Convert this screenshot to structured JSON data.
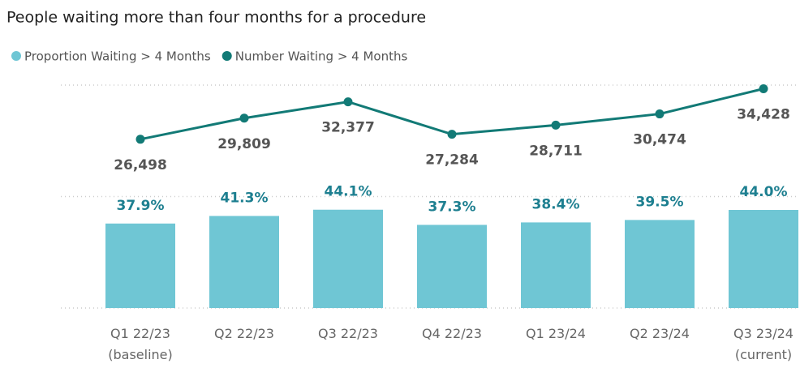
{
  "chart_data": {
    "type": "bar_line",
    "title": "People waiting more than four months for a procedure",
    "categories": [
      "Q1 22/23\n(baseline)",
      "Q2 22/23",
      "Q3 22/23",
      "Q4 22/23",
      "Q1 23/24",
      "Q2 23/24",
      "Q3 23/24\n(current)"
    ],
    "series": [
      {
        "name": "Proportion Waiting > 4 Months",
        "type": "bar",
        "color": "#6fc6d4",
        "values": [
          37.9,
          41.3,
          44.1,
          37.3,
          38.4,
          39.5,
          44.0
        ],
        "value_labels": [
          "37.9%",
          "41.3%",
          "44.1%",
          "37.3%",
          "38.4%",
          "39.5%",
          "44.0%"
        ]
      },
      {
        "name": "Number Waiting > 4 Months",
        "type": "line",
        "axis": "y2",
        "color": "#127a76",
        "values": [
          26498,
          29809,
          32377,
          27284,
          28711,
          30474,
          34428
        ],
        "value_labels": [
          "26,498",
          "29,809",
          "32,377",
          "27,284",
          "28,711",
          "30,474",
          "34,428"
        ]
      }
    ],
    "ylim": [
      0,
      100
    ],
    "yticks": [
      0,
      50,
      100
    ],
    "y2lim": [
      0,
      35000
    ],
    "grid": true,
    "legend": "top-left"
  }
}
